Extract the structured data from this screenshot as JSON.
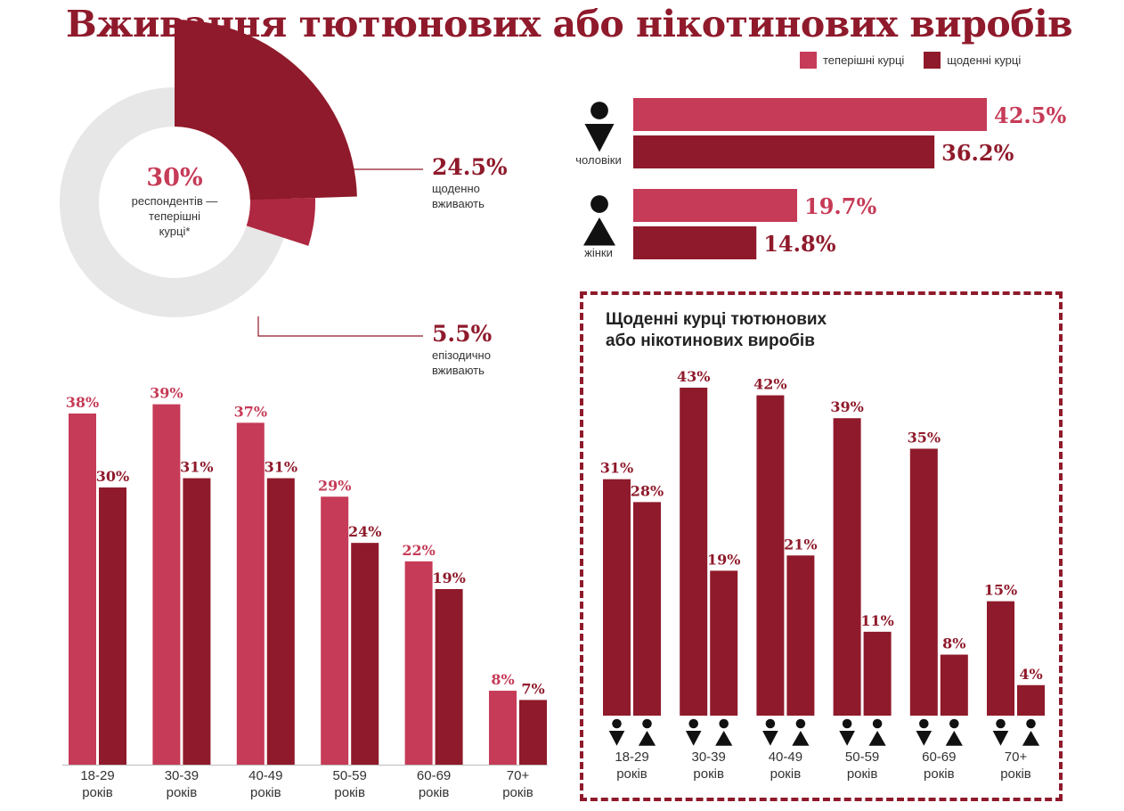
{
  "title": "Вживання тютюнових або нікотинових виробів",
  "legend": [
    {
      "label": "теперішні курці",
      "color": "#c63b57"
    },
    {
      "label": "щоденні курці",
      "color": "#8f1a2b"
    }
  ],
  "colors": {
    "current": "#c63b57",
    "daily": "#8f1a2b",
    "ring": "#e7e7e7"
  },
  "chart_data": [
    {
      "type": "pie",
      "center": {
        "value": "30%",
        "line1": "респондентів —",
        "line2": "теперішні",
        "line3": "курці*"
      },
      "slices": [
        {
          "value": 24.5,
          "label": "24.5%",
          "text1": "щоденно",
          "text2": "вживають"
        },
        {
          "value": 5.5,
          "label": "5.5%",
          "text1": "епізодично",
          "text2": "вживають"
        }
      ]
    },
    {
      "type": "bar",
      "orientation": "horizontal",
      "categories": [
        "чоловіки",
        "жінки"
      ],
      "icons": [
        "male-icon",
        "female-icon"
      ],
      "series": [
        {
          "name": "теперішні курці",
          "values": [
            42.5,
            19.7
          ],
          "labels": [
            "42.5%",
            "19.7%"
          ]
        },
        {
          "name": "щоденні курці",
          "values": [
            36.2,
            14.8
          ],
          "labels": [
            "36.2%",
            "14.8%"
          ]
        }
      ]
    },
    {
      "type": "bar",
      "categories": [
        {
          "line1": "18-29",
          "line2": "років"
        },
        {
          "line1": "30-39",
          "line2": "років"
        },
        {
          "line1": "40-49",
          "line2": "років"
        },
        {
          "line1": "50-59",
          "line2": "років"
        },
        {
          "line1": "60-69",
          "line2": "років"
        },
        {
          "line1": "70+",
          "line2": "років"
        }
      ],
      "series": [
        {
          "name": "теперішні курці",
          "values": [
            38,
            39,
            37,
            29,
            22,
            8
          ],
          "labels": [
            "38%",
            "39%",
            "37%",
            "29%",
            "22%",
            "8%"
          ]
        },
        {
          "name": "щоденні курці",
          "values": [
            30,
            31,
            31,
            24,
            19,
            7
          ],
          "labels": [
            "30%",
            "31%",
            "31%",
            "24%",
            "19%",
            "7%"
          ]
        }
      ]
    },
    {
      "type": "bar",
      "title_line1": "Щоденні курці тютюнових",
      "title_line2": "або нікотинових виробів",
      "categories": [
        {
          "line1": "18-29",
          "line2": "років"
        },
        {
          "line1": "30-39",
          "line2": "років"
        },
        {
          "line1": "40-49",
          "line2": "років"
        },
        {
          "line1": "50-59",
          "line2": "років"
        },
        {
          "line1": "60-69",
          "line2": "років"
        },
        {
          "line1": "70+",
          "line2": "років"
        }
      ],
      "series": [
        {
          "icon": "male-icon",
          "values": [
            31,
            43,
            42,
            39,
            35,
            15
          ],
          "labels": [
            "31%",
            "43%",
            "42%",
            "39%",
            "35%",
            "15%"
          ]
        },
        {
          "icon": "female-icon",
          "values": [
            28,
            19,
            21,
            11,
            8,
            4
          ],
          "labels": [
            "28%",
            "19%",
            "21%",
            "11%",
            "8%",
            "4%"
          ]
        }
      ]
    }
  ]
}
